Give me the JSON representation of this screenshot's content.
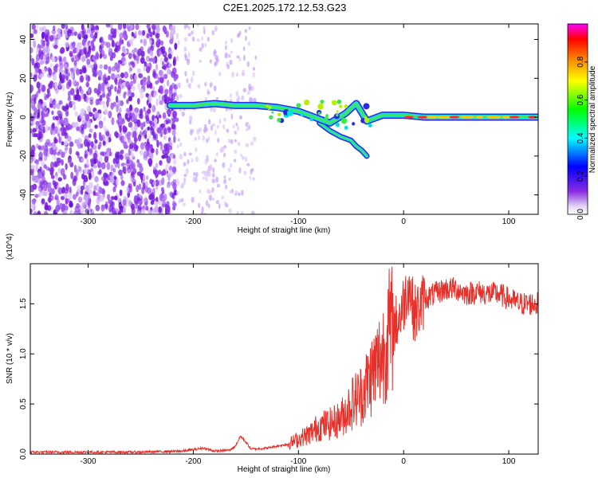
{
  "title": "C2E1.2025.172.12.53.G23",
  "chart_data": [
    {
      "type": "heatmap",
      "xlabel": "Height of straight line (km)",
      "ylabel": "Frequency (Hz)",
      "xlim": [
        -355,
        128
      ],
      "ylim": [
        -50,
        48
      ],
      "xticks": [
        -300,
        -200,
        -100,
        0,
        100
      ],
      "yticks": [
        -40,
        -20,
        0,
        20,
        40
      ],
      "colorbar": {
        "label": "Normalized spectral amplitude",
        "range": [
          0,
          1
        ],
        "ticks": [
          "0.0",
          "0.2",
          "0.4",
          "0.6",
          "0.8"
        ],
        "colors": [
          "#ffffff",
          "#d9c2f5",
          "#8a2be2",
          "#0000ff",
          "#00ffff",
          "#00ff00",
          "#ffff00",
          "#ff8000",
          "#ff0000",
          "#ff00ff"
        ]
      },
      "noise_region_x": [
        -355,
        -215
      ],
      "sparse_noise_region_x": [
        -215,
        -140
      ],
      "signal_trace": {
        "x": [
          -222,
          -200,
          -180,
          -160,
          -140,
          -120,
          -100,
          -85,
          -70,
          -55,
          -45,
          -35,
          -20,
          0,
          20,
          40,
          60,
          80,
          100,
          128
        ],
        "y": [
          6,
          6,
          7,
          6,
          6,
          5,
          3,
          0,
          -3,
          2,
          7,
          -2,
          1,
          1,
          0,
          0,
          0,
          0,
          0,
          0
        ]
      },
      "branch_trace": {
        "x": [
          -80,
          -70,
          -60,
          -50,
          -45,
          -40,
          -35
        ],
        "y": [
          -3,
          -7,
          -10,
          -12,
          -15,
          -17,
          -20
        ]
      }
    },
    {
      "type": "line",
      "xlabel": "Height of straight line (km)",
      "ylabel": "SNR (10 * v/v)",
      "y_multiplier": "(x10^4)",
      "xlim": [
        -355,
        128
      ],
      "ylim": [
        0,
        1.9
      ],
      "xticks": [
        -300,
        -200,
        -100,
        0,
        100
      ],
      "yticks": [
        "0.0",
        "0.5",
        "1.0",
        "1.5"
      ],
      "color": "#e8302a",
      "series": [
        {
          "x": [
            -355,
            -300,
            -250,
            -210,
            -190,
            -180,
            -165,
            -160,
            -155,
            -150,
            -145,
            -130,
            -110,
            -100,
            -90,
            -80,
            -70,
            -60,
            -50,
            -40,
            -30,
            -20,
            -15,
            -10,
            -5,
            0,
            5,
            10,
            15,
            20,
            30,
            40,
            50,
            60,
            70,
            80,
            90,
            100,
            110,
            120,
            128
          ],
          "values": [
            0.02,
            0.02,
            0.02,
            0.03,
            0.06,
            0.03,
            0.04,
            0.08,
            0.18,
            0.12,
            0.05,
            0.06,
            0.1,
            0.15,
            0.2,
            0.28,
            0.3,
            0.35,
            0.5,
            0.6,
            0.8,
            1.0,
            1.2,
            1.25,
            1.35,
            1.5,
            1.7,
            1.4,
            1.45,
            1.55,
            1.6,
            1.65,
            1.65,
            1.6,
            1.62,
            1.6,
            1.6,
            1.55,
            1.5,
            1.5,
            1.5
          ]
        }
      ]
    }
  ]
}
